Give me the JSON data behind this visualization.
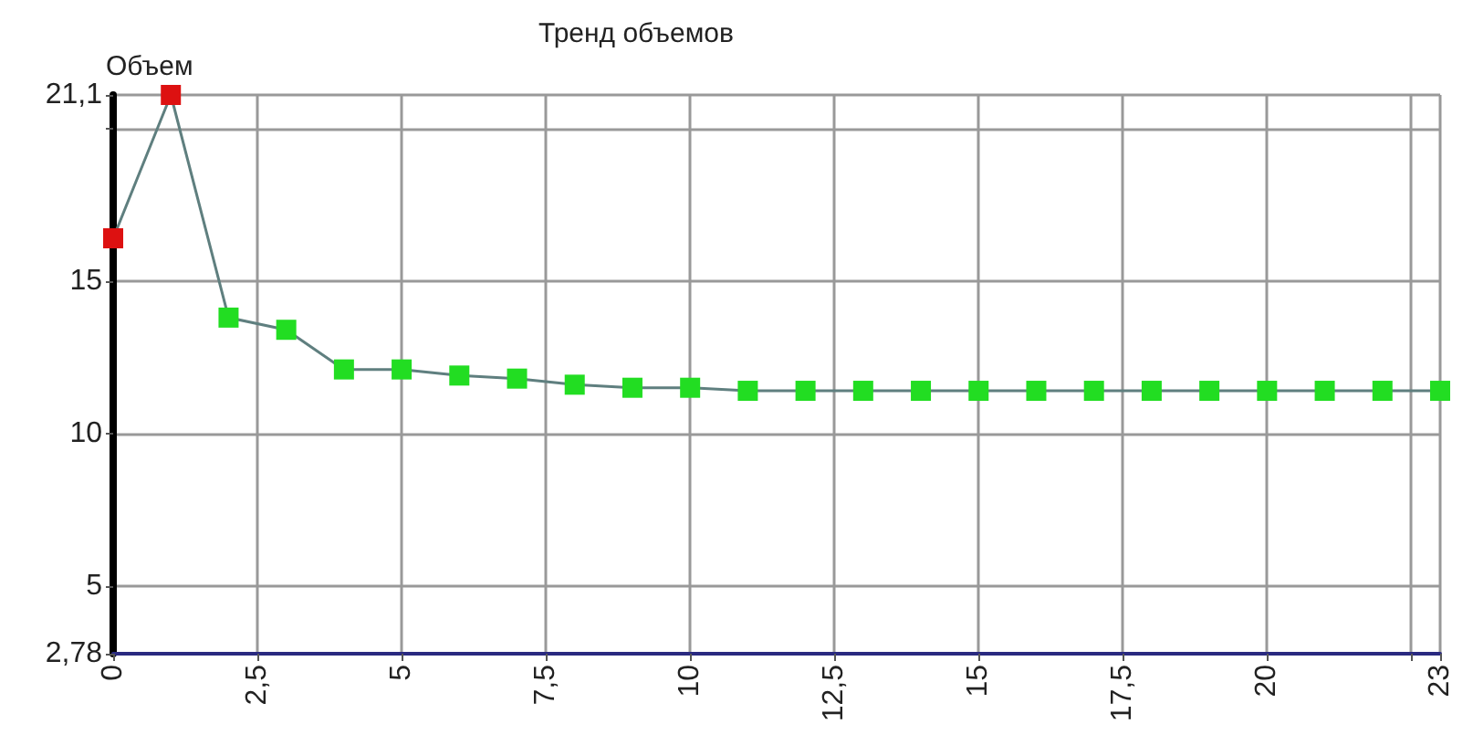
{
  "chart_data": {
    "type": "line",
    "title": "Тренд объемов",
    "ylabel": "Объем",
    "x": [
      0,
      1,
      2,
      3,
      4,
      5,
      6,
      7,
      8,
      9,
      10,
      11,
      12,
      13,
      14,
      15,
      16,
      17,
      18,
      19,
      20,
      21,
      22,
      23
    ],
    "series": [
      {
        "color": "#5f7f7f",
        "values": [
          16.4,
          21.1,
          13.8,
          13.4,
          12.1,
          12.1,
          11.9,
          11.8,
          11.6,
          11.5,
          11.5,
          11.4,
          11.4,
          11.4,
          11.4,
          11.4,
          11.4,
          11.4,
          11.4,
          11.4,
          11.4,
          11.4,
          11.4,
          11.4
        ],
        "colors": [
          "#dd1111",
          "#dd1111",
          "#22dd22",
          "#22dd22",
          "#22dd22",
          "#22dd22",
          "#22dd22",
          "#22dd22",
          "#22dd22",
          "#22dd22",
          "#22dd22",
          "#22dd22",
          "#22dd22",
          "#22dd22",
          "#22dd22",
          "#22dd22",
          "#22dd22",
          "#22dd22",
          "#22dd22",
          "#22dd22",
          "#22dd22",
          "#22dd22",
          "#22dd22",
          "#22dd22"
        ]
      }
    ],
    "xlim": [
      0,
      23
    ],
    "xticks": [
      0,
      {
        "value": 2.5,
        "label": "2,5"
      },
      5,
      {
        "value": 7.5,
        "label": "7,5"
      },
      10,
      {
        "value": 12.5,
        "label": "12,5"
      },
      15,
      {
        "value": 17.5,
        "label": "17,5"
      },
      20,
      {
        "value": 22.5,
        "label": null
      },
      23
    ],
    "ylim": [
      2.78,
      21.1
    ],
    "yticks": [
      {
        "value": 2.78,
        "label": "2,78"
      },
      5,
      10,
      15,
      {
        "value": 20,
        "label": null
      },
      {
        "value": 21.1,
        "label": "21,1"
      }
    ],
    "grid": true,
    "marker": "square",
    "line_style": "solid"
  }
}
